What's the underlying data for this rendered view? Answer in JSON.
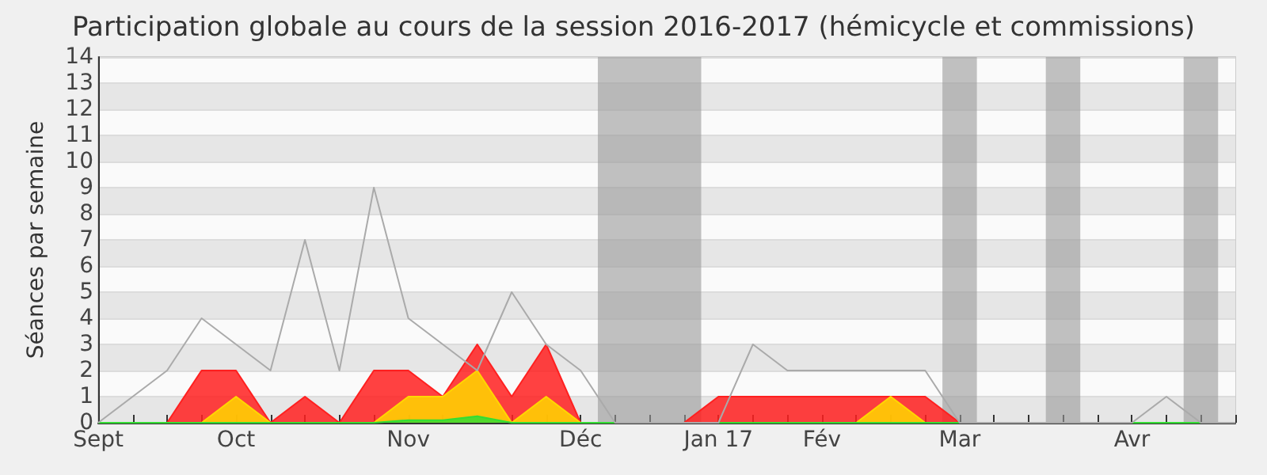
{
  "chart_data": {
    "type": "area",
    "title": "Participation globale au cours de la session 2016-2017 (hémicycle et commissions)",
    "ylabel": "Séances par semaine",
    "x": [
      "2016-09-07",
      "2016-09-14",
      "2016-09-21",
      "2016-09-28",
      "2016-10-05",
      "2016-10-12",
      "2016-10-19",
      "2016-10-26",
      "2016-11-02",
      "2016-11-09",
      "2016-11-16",
      "2016-11-23",
      "2016-11-30",
      "2016-12-07",
      "2016-12-14",
      "2016-12-21",
      "2016-12-28",
      "2017-01-04",
      "2017-01-11",
      "2017-01-18",
      "2017-01-25",
      "2017-02-01",
      "2017-02-08",
      "2017-02-15",
      "2017-02-22",
      "2017-03-01",
      "2017-03-08",
      "2017-03-15",
      "2017-03-22",
      "2017-03-29",
      "2017-04-05",
      "2017-04-12",
      "2017-04-19",
      "2017-04-26"
    ],
    "series": [
      {
        "type": "line",
        "color": "#aaaaaa",
        "values": [
          0,
          1,
          2,
          4,
          3,
          2,
          7,
          2,
          9,
          4,
          3,
          2,
          5,
          3,
          2,
          0,
          0,
          0,
          0,
          3,
          2,
          2,
          2,
          2,
          2,
          0,
          0,
          0,
          0,
          0,
          0,
          1,
          0,
          0
        ]
      },
      {
        "color": "#ff2020",
        "values": [
          0,
          0,
          0,
          2,
          2,
          0,
          1,
          0,
          2,
          2,
          1,
          3,
          1,
          3,
          0,
          0,
          0,
          0,
          1,
          1,
          1,
          1,
          1,
          1,
          1,
          0,
          0,
          0,
          0,
          0,
          0,
          0,
          0,
          0
        ]
      },
      {
        "color": "#ffd700",
        "values": [
          0,
          0,
          0,
          0,
          1,
          0,
          0,
          0,
          0,
          1,
          1,
          2,
          0,
          1,
          0,
          0,
          0,
          0,
          0,
          0,
          0,
          0,
          0,
          1,
          0,
          0,
          0,
          0,
          0,
          0,
          0,
          0,
          0,
          0
        ]
      },
      {
        "color": "#33dd33",
        "values": [
          0,
          0,
          0,
          0,
          0,
          0,
          0,
          0,
          0,
          0.1,
          0.1,
          0.25,
          0,
          0,
          0,
          0,
          0,
          0,
          0,
          0,
          0,
          0,
          0,
          0,
          0,
          0,
          0,
          0,
          0,
          0,
          0,
          0,
          0,
          0
        ]
      }
    ],
    "xlim": [
      "2016-09-07",
      "2017-04-26"
    ],
    "xticks": [
      {
        "value": "2016-09-07",
        "label": "Sept"
      },
      {
        "value": "2016-09-14",
        "label": null
      },
      {
        "value": "2016-09-21",
        "label": null
      },
      {
        "value": "2016-09-28",
        "label": null
      },
      {
        "value": "2016-10-05",
        "label": "Oct"
      },
      {
        "value": "2016-10-12",
        "label": null
      },
      {
        "value": "2016-10-19",
        "label": null
      },
      {
        "value": "2016-10-26",
        "label": null
      },
      {
        "value": "2016-11-02",
        "label": null
      },
      {
        "value": "2016-11-09",
        "label": "Nov"
      },
      {
        "value": "2016-11-16",
        "label": null
      },
      {
        "value": "2016-11-23",
        "label": null
      },
      {
        "value": "2016-11-30",
        "label": null
      },
      {
        "value": "2016-12-07",
        "label": null
      },
      {
        "value": "2016-12-14",
        "label": "Déc"
      },
      {
        "value": "2016-12-21",
        "label": null
      },
      {
        "value": "2016-12-28",
        "label": null
      },
      {
        "value": "2017-01-04",
        "label": null
      },
      {
        "value": "2017-01-11",
        "label": "Jan 17"
      },
      {
        "value": "2017-01-18",
        "label": null
      },
      {
        "value": "2017-01-25",
        "label": null
      },
      {
        "value": "2017-02-01",
        "label": "Fév"
      },
      {
        "value": "2017-02-08",
        "label": null
      },
      {
        "value": "2017-02-15",
        "label": null
      },
      {
        "value": "2017-02-22",
        "label": null
      },
      {
        "value": "2017-03-01",
        "label": "Mar"
      },
      {
        "value": "2017-03-08",
        "label": null
      },
      {
        "value": "2017-03-15",
        "label": null
      },
      {
        "value": "2017-03-22",
        "label": null
      },
      {
        "value": "2017-03-29",
        "label": null
      },
      {
        "value": "2017-04-05",
        "label": "Avr"
      },
      {
        "value": "2017-04-12",
        "label": null
      },
      {
        "value": "2017-04-19",
        "label": null
      },
      {
        "value": "2017-04-26",
        "label": null
      }
    ],
    "ylim": [
      0,
      14
    ],
    "yticks": [
      0,
      1,
      2,
      3,
      4,
      5,
      6,
      7,
      8,
      9,
      10,
      11,
      12,
      13,
      14
    ],
    "bands": [
      {
        "axis": "x",
        "from": "2016-12-17T12:00",
        "to": "2017-01-07T12:00",
        "color": "#999999"
      },
      {
        "axis": "x",
        "from": "2017-02-25T12:00",
        "to": "2017-03-04T12:00",
        "color": "#999999"
      },
      {
        "axis": "x",
        "from": "2017-03-18T12:00",
        "to": "2017-03-25T12:00",
        "color": "#999999"
      },
      {
        "axis": "x",
        "from": "2017-04-15T12:00",
        "to": "2017-04-22T12:00",
        "color": "#999999"
      }
    ],
    "grid": "y",
    "marker": "none"
  }
}
